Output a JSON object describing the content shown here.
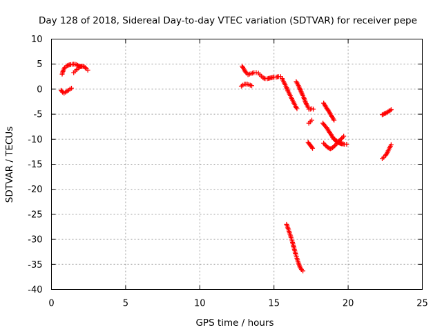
{
  "chart_data": {
    "type": "scatter",
    "title": "Day 128 of 2018, Sidereal Day-to-day VTEC variation (SDTVAR) for receiver pepe",
    "xlabel": "GPS time / hours",
    "ylabel": "SDTVAR / TECUs",
    "xlim": [
      0,
      25
    ],
    "ylim": [
      -40,
      10
    ],
    "x_ticks": [
      0,
      5,
      10,
      15,
      20,
      25
    ],
    "y_ticks": [
      10,
      5,
      0,
      -5,
      -10,
      -15,
      -20,
      -25,
      -30,
      -35,
      -40
    ],
    "grid": true,
    "marker": "plus",
    "color": "#ff0000",
    "segments": [
      [
        [
          0.72,
          3.0
        ],
        [
          0.8,
          3.8
        ],
        [
          0.9,
          4.3
        ],
        [
          1.0,
          4.6
        ],
        [
          1.15,
          4.8
        ],
        [
          1.3,
          4.9
        ],
        [
          1.5,
          5.0
        ],
        [
          1.7,
          4.9
        ],
        [
          1.85,
          4.6
        ],
        [
          2.0,
          4.5
        ]
      ],
      [
        [
          1.5,
          3.3
        ],
        [
          1.6,
          3.6
        ],
        [
          1.7,
          3.9
        ],
        [
          1.8,
          4.2
        ],
        [
          1.9,
          4.4
        ],
        [
          2.05,
          4.6
        ],
        [
          2.2,
          4.5
        ],
        [
          2.35,
          4.1
        ],
        [
          2.45,
          3.8
        ]
      ],
      [
        [
          0.65,
          -0.2
        ],
        [
          0.75,
          -0.6
        ],
        [
          0.85,
          -0.8
        ],
        [
          0.95,
          -0.6
        ],
        [
          1.05,
          -0.4
        ],
        [
          1.15,
          -0.2
        ],
        [
          1.25,
          0.0
        ],
        [
          1.35,
          0.2
        ]
      ],
      [
        [
          12.85,
          4.6
        ],
        [
          12.95,
          4.1
        ],
        [
          13.05,
          3.6
        ],
        [
          13.15,
          3.2
        ],
        [
          13.25,
          2.9
        ],
        [
          13.35,
          3.0
        ],
        [
          13.45,
          3.1
        ],
        [
          13.55,
          3.2
        ],
        [
          13.65,
          3.3
        ],
        [
          13.8,
          3.3
        ]
      ],
      [
        [
          13.95,
          3.2
        ],
        [
          14.05,
          2.9
        ],
        [
          14.15,
          2.6
        ],
        [
          14.25,
          2.3
        ],
        [
          14.4,
          2.1
        ],
        [
          14.55,
          2.1
        ],
        [
          14.7,
          2.2
        ],
        [
          14.85,
          2.3
        ],
        [
          15.0,
          2.4
        ],
        [
          15.15,
          2.4
        ],
        [
          15.3,
          2.5
        ],
        [
          15.45,
          2.5
        ]
      ],
      [
        [
          15.55,
          2.1
        ],
        [
          15.65,
          1.5
        ],
        [
          15.75,
          0.9
        ],
        [
          15.85,
          0.3
        ],
        [
          15.95,
          -0.4
        ],
        [
          16.05,
          -1.0
        ],
        [
          16.15,
          -1.6
        ],
        [
          16.25,
          -2.2
        ],
        [
          16.35,
          -2.8
        ],
        [
          16.45,
          -3.4
        ],
        [
          16.55,
          -3.9
        ]
      ],
      [
        [
          12.8,
          0.6
        ],
        [
          12.9,
          0.8
        ],
        [
          13.0,
          1.0
        ],
        [
          13.1,
          1.0
        ],
        [
          13.2,
          1.0
        ],
        [
          13.3,
          0.9
        ],
        [
          13.4,
          0.8
        ],
        [
          13.5,
          0.7
        ]
      ],
      [
        [
          16.5,
          1.5
        ],
        [
          16.6,
          1.0
        ],
        [
          16.7,
          0.4
        ],
        [
          16.8,
          -0.3
        ],
        [
          16.9,
          -1.0
        ],
        [
          17.0,
          -1.6
        ],
        [
          17.1,
          -2.4
        ],
        [
          17.2,
          -3.1
        ],
        [
          17.3,
          -3.6
        ]
      ],
      [
        [
          17.35,
          -4.0
        ],
        [
          17.45,
          -4.0
        ],
        [
          17.55,
          -3.9
        ],
        [
          17.65,
          -4.0
        ]
      ],
      [
        [
          17.35,
          -6.8
        ],
        [
          17.45,
          -6.5
        ],
        [
          17.55,
          -6.2
        ]
      ],
      [
        [
          17.3,
          -10.6
        ],
        [
          17.4,
          -11.0
        ],
        [
          17.5,
          -11.4
        ],
        [
          17.6,
          -11.8
        ]
      ],
      [
        [
          18.35,
          -2.8
        ],
        [
          18.45,
          -3.3
        ],
        [
          18.55,
          -3.8
        ],
        [
          18.65,
          -4.2
        ],
        [
          18.75,
          -4.7
        ],
        [
          18.85,
          -5.2
        ],
        [
          18.95,
          -5.7
        ],
        [
          19.05,
          -6.2
        ]
      ],
      [
        [
          18.3,
          -6.8
        ],
        [
          18.4,
          -7.2
        ],
        [
          18.55,
          -7.7
        ],
        [
          18.7,
          -8.4
        ],
        [
          18.85,
          -9.1
        ],
        [
          19.0,
          -9.8
        ],
        [
          19.15,
          -10.3
        ],
        [
          19.3,
          -10.6
        ],
        [
          19.45,
          -10.8
        ],
        [
          19.6,
          -10.9
        ],
        [
          19.75,
          -11.0
        ],
        [
          19.9,
          -11.0
        ]
      ],
      [
        [
          18.35,
          -10.8
        ],
        [
          18.5,
          -11.3
        ],
        [
          18.65,
          -11.7
        ],
        [
          18.8,
          -11.9
        ],
        [
          18.95,
          -11.7
        ],
        [
          19.1,
          -11.3
        ],
        [
          19.25,
          -10.8
        ],
        [
          19.4,
          -10.3
        ],
        [
          19.55,
          -9.9
        ],
        [
          19.7,
          -9.4
        ]
      ],
      [
        [
          19.1,
          -10.0
        ],
        [
          19.2,
          -10.3
        ],
        [
          19.3,
          -10.5
        ],
        [
          19.4,
          -10.7
        ],
        [
          19.55,
          -10.9
        ]
      ],
      [
        [
          15.85,
          -27.0
        ],
        [
          15.95,
          -27.8
        ],
        [
          16.05,
          -28.7
        ],
        [
          16.15,
          -29.6
        ],
        [
          16.25,
          -30.6
        ],
        [
          16.35,
          -31.7
        ],
        [
          16.45,
          -32.8
        ],
        [
          16.55,
          -33.8
        ],
        [
          16.65,
          -34.7
        ],
        [
          16.75,
          -35.5
        ],
        [
          16.85,
          -36.0
        ],
        [
          16.95,
          -36.3
        ]
      ],
      [
        [
          22.3,
          -5.1
        ],
        [
          22.45,
          -4.9
        ],
        [
          22.6,
          -4.7
        ],
        [
          22.75,
          -4.4
        ],
        [
          22.9,
          -4.1
        ]
      ],
      [
        [
          22.3,
          -13.9
        ],
        [
          22.4,
          -13.6
        ],
        [
          22.5,
          -13.3
        ],
        [
          22.6,
          -12.9
        ],
        [
          22.7,
          -12.3
        ],
        [
          22.8,
          -11.7
        ],
        [
          22.9,
          -11.1
        ]
      ]
    ]
  }
}
